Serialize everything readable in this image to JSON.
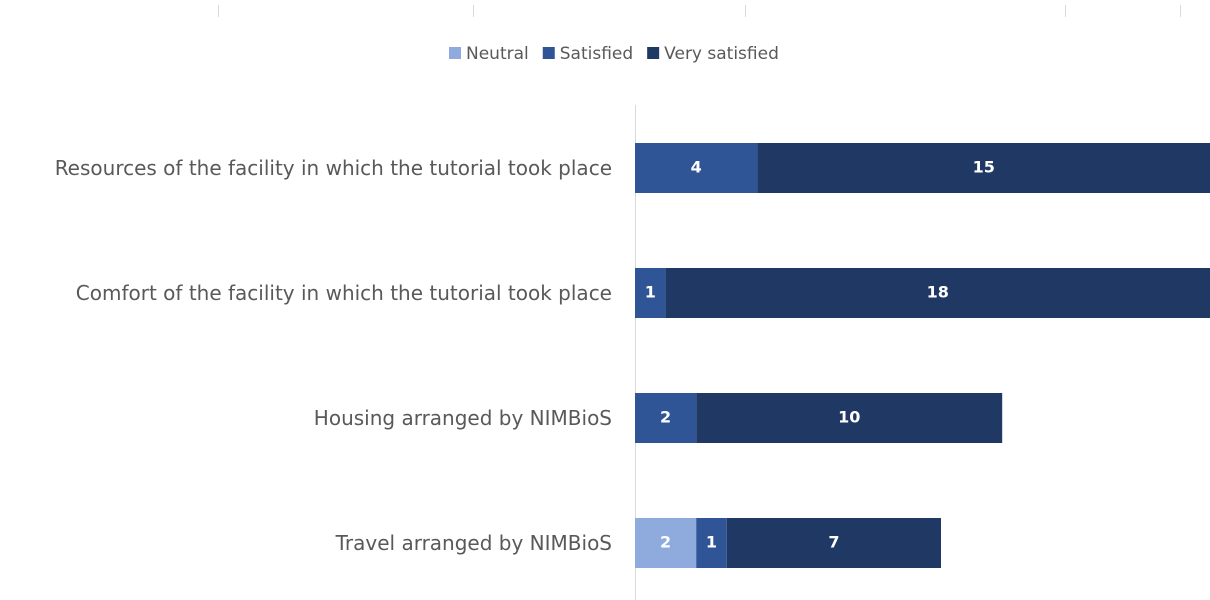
{
  "chart_data": {
    "type": "stacked-bar-horizontal",
    "categories": [
      "Resources of the facility in which the tutorial took place",
      "Comfort of the facility in which the tutorial took place",
      "Housing arranged by NIMBioS",
      "Travel arranged by NIMBioS"
    ],
    "series": [
      {
        "name": "Neutral",
        "color": "#8faadc",
        "values": [
          null,
          null,
          null,
          2
        ]
      },
      {
        "name": "Satisfied",
        "color": "#2f5597",
        "values": [
          4,
          1,
          2,
          1
        ]
      },
      {
        "name": "Very satisfied",
        "color": "#203864",
        "values": [
          15,
          18,
          10,
          7
        ]
      }
    ]
  }
}
